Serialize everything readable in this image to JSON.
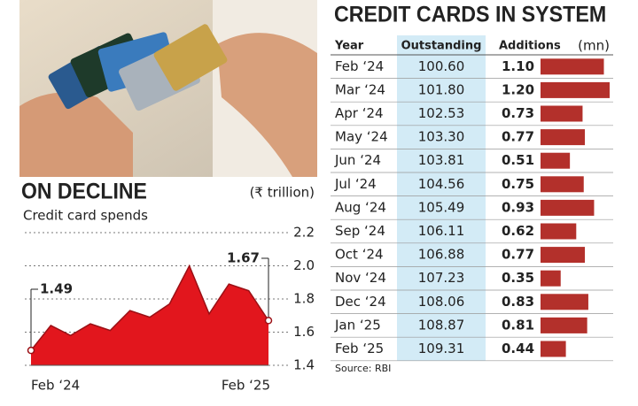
{
  "chart_data": [
    {
      "type": "area",
      "title": "ON DECLINE",
      "subtitle": "Credit card spends",
      "unit": "(₹ trillion)",
      "categories": [
        "Feb ‘24",
        null,
        null,
        null,
        null,
        null,
        null,
        null,
        null,
        null,
        null,
        null,
        "Feb ‘25"
      ],
      "values": [
        1.49,
        1.64,
        1.58,
        1.65,
        1.61,
        1.73,
        1.69,
        1.77,
        2.0,
        1.71,
        1.89,
        1.85,
        1.67
      ],
      "color": "#e2161d",
      "ylim": [
        1.4,
        2.2
      ],
      "yticks": [
        1.4,
        1.6,
        1.8,
        {
          "value": 2,
          "label": "2.0"
        },
        2.2
      ],
      "grid": true
    },
    {
      "type": "table-bar",
      "title": "CREDIT CARDS IN SYSTEM",
      "columns": [
        "Year",
        "Outstanding",
        "Additions"
      ],
      "unit": "(mn)",
      "categories": [
        "Feb ‘24",
        "Mar ‘24",
        "Apr ‘24",
        "May ‘24",
        "Jun ‘24",
        "Jul ‘24",
        "Aug ‘24",
        "Sep ‘24",
        "Oct ‘24",
        "Nov ‘24",
        "Dec ‘24",
        "Jan ‘25",
        "Feb ‘25"
      ],
      "series": [
        {
          "name": "Outstanding",
          "color": "#d3ebf6",
          "values": [
            100.6,
            101.8,
            102.53,
            103.3,
            103.81,
            104.56,
            105.49,
            106.11,
            106.88,
            107.23,
            108.06,
            108.87,
            109.31
          ],
          "value_labels": [
            "100.60",
            "101.80",
            "102.53",
            "103.30",
            "103.81",
            "104.56",
            "105.49",
            "106.11",
            "106.88",
            "107.23",
            "108.06",
            "108.87",
            "109.31"
          ]
        },
        {
          "name": "Additions",
          "color": "#b3302b",
          "values": [
            1.1,
            1.2,
            0.73,
            0.77,
            0.51,
            0.75,
            0.93,
            0.62,
            0.77,
            0.35,
            0.83,
            0.81,
            0.44
          ],
          "value_labels": [
            "1.10",
            "1.20",
            "0.73",
            "0.77",
            "0.51",
            "0.75",
            "0.93",
            "0.62",
            "0.77",
            "0.35",
            "0.83",
            "0.81",
            "0.44"
          ]
        }
      ],
      "source": "Source: RBI"
    }
  ]
}
